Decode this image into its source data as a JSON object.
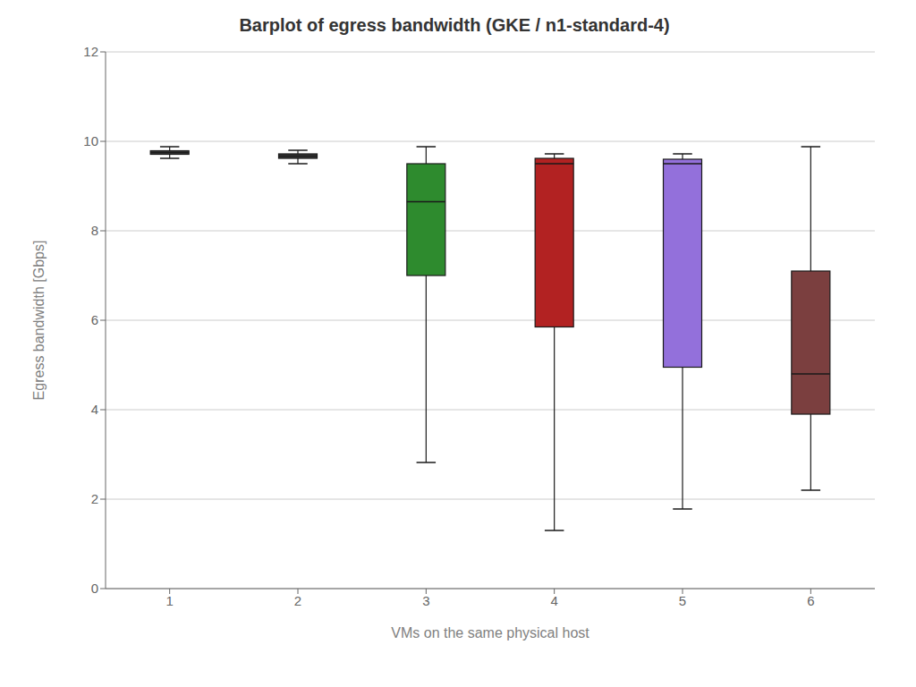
{
  "chart_data": {
    "type": "box",
    "title": "Barplot of egress bandwidth (GKE / n1-standard-4)",
    "x_label": "VMs on the same physical host",
    "y_label": "Egress bandwidth [Gbps]",
    "categories": [
      "1",
      "2",
      "3",
      "4",
      "5",
      "6"
    ],
    "whislo": [
      9.62,
      9.5,
      2.82,
      1.3,
      1.78,
      2.2
    ],
    "q1": [
      9.71,
      9.62,
      7.0,
      5.85,
      4.95,
      3.9
    ],
    "median": [
      9.75,
      9.67,
      8.65,
      9.5,
      9.5,
      4.8
    ],
    "q3": [
      9.79,
      9.72,
      9.5,
      9.62,
      9.6,
      7.1
    ],
    "whishi": [
      9.88,
      9.8,
      9.88,
      9.72,
      9.72,
      9.88
    ],
    "colors": [
      "#3a3a3a",
      "#3a3a3a",
      "#2e8b2e",
      "#b22222",
      "#9370db",
      "#7b3f3f"
    ],
    "ylim": [
      0,
      12
    ],
    "yticks": [
      0,
      2,
      4,
      6,
      8,
      10,
      12
    ],
    "grid": true
  }
}
